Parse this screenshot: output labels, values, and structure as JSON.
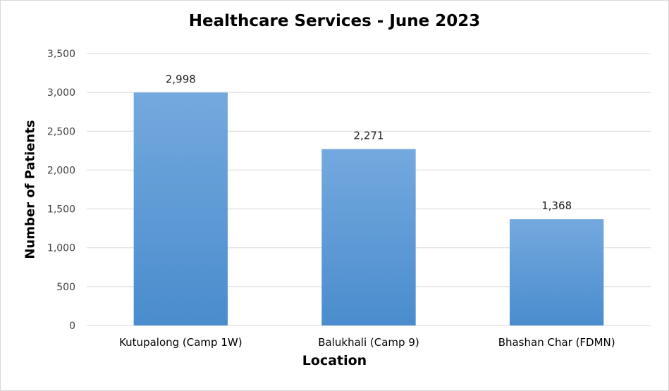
{
  "chart_data": {
    "type": "bar",
    "title": "Healthcare Services - June 2023",
    "xlabel": "Location",
    "ylabel": "Number of Patients",
    "categories": [
      "Kutupalong (Camp 1W)",
      "Balukhali (Camp 9)",
      "Bhashan Char (FDMN)"
    ],
    "values": [
      2998,
      2271,
      1368
    ],
    "data_labels": [
      "2,998",
      "2,271",
      "1,368"
    ],
    "ylim": [
      0,
      3500
    ],
    "yticks": [
      0,
      500,
      1000,
      1500,
      2000,
      2500,
      3000,
      3500
    ],
    "ytick_labels": [
      "0",
      "500",
      "1,000",
      "1,500",
      "2,000",
      "2,500",
      "3,000",
      "3,500"
    ],
    "grid": true,
    "legend": "none",
    "colors": {
      "bar_top": "#74a9de",
      "bar_bottom": "#4a8ccd",
      "grid": "#d9d9d9"
    }
  }
}
